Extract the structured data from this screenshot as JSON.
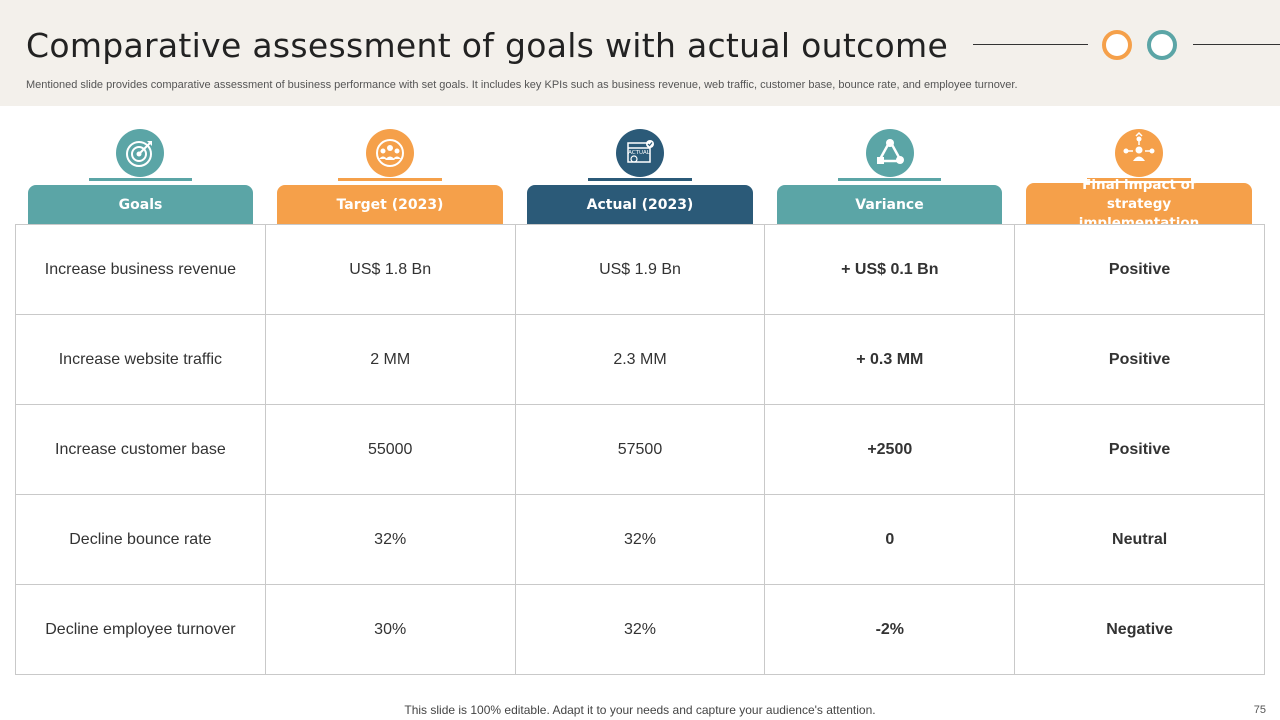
{
  "title": "Comparative assessment of goals with actual outcome",
  "subtitle": "Mentioned slide provides comparative assessment of business performance with set goals. It includes key KPIs such as business revenue, web traffic,  customer base, bounce rate, and employee turnover.",
  "colors": {
    "teal": "#5ba5a6",
    "orange": "#f5a04a",
    "navy": "#2b5a78",
    "positive": "#1e9a4b",
    "neutral": "#f2b705",
    "negative": "#b01515"
  },
  "columns": [
    {
      "label": "Goals",
      "icon": "target-icon"
    },
    {
      "label": "Target (2023)",
      "icon": "team-icon"
    },
    {
      "label": "Actual (2023)",
      "icon": "actual-calendar-icon",
      "icon_text": "ACTUAL"
    },
    {
      "label": "Variance",
      "icon": "variance-shapes-icon"
    },
    {
      "label": "Final impact of strategy implementation",
      "icon": "network-person-icon"
    }
  ],
  "rows": [
    {
      "goal": "Increase  business revenue",
      "target": "US$ 1.8 Bn",
      "actual": "US$ 1.9 Bn",
      "variance": "+ US$ 0.1 Bn",
      "impact": "Positive"
    },
    {
      "goal": "Increase  website traffic",
      "target": "2 MM",
      "actual": "2.3 MM",
      "variance": "+ 0.3 MM",
      "impact": "Positive"
    },
    {
      "goal": "Increase  customer base",
      "target": "55000",
      "actual": "57500",
      "variance": "+2500",
      "impact": "Positive"
    },
    {
      "goal": "Decline bounce rate",
      "target": "32%",
      "actual": "32%",
      "variance": "0",
      "impact": "Neutral"
    },
    {
      "goal": "Decline employee turnover",
      "target": "30%",
      "actual": "32%",
      "variance": "-2%",
      "impact": "Negative"
    }
  ],
  "footer": "This slide is 100% editable. Adapt it to your needs and capture your audience's attention.",
  "page_number": "75"
}
